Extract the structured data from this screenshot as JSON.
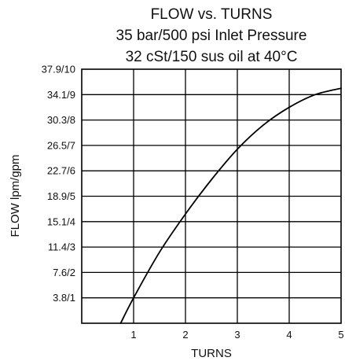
{
  "chart_data": {
    "type": "line",
    "title_lines": [
      "FLOW vs. TURNS",
      "35 bar/500 psi Inlet Pressure",
      "32 cSt/150 sus oil at 40°C"
    ],
    "xlabel": "TURNS",
    "ylabel": "FLOW lpm/gpm",
    "xlim": [
      0,
      5
    ],
    "ylim": [
      0,
      10
    ],
    "x_ticks": [
      {
        "value": 1,
        "label": "1"
      },
      {
        "value": 2,
        "label": "2"
      },
      {
        "value": 3,
        "label": "3"
      },
      {
        "value": 4,
        "label": "4"
      },
      {
        "value": 5,
        "label": "5"
      }
    ],
    "y_ticks": [
      {
        "value": 1,
        "label": "3.8/1"
      },
      {
        "value": 2,
        "label": "7.6/2"
      },
      {
        "value": 3,
        "label": "11.4/3"
      },
      {
        "value": 4,
        "label": "15.1/4"
      },
      {
        "value": 5,
        "label": "18.9/5"
      },
      {
        "value": 6,
        "label": "22.7/6"
      },
      {
        "value": 7,
        "label": "26.5/7"
      },
      {
        "value": 8,
        "label": "30.3/8"
      },
      {
        "value": 9,
        "label": "34.1/9"
      },
      {
        "value": 10,
        "label": "37.9/10"
      }
    ],
    "grid": true,
    "series": [
      {
        "x": [
          0.75,
          1.0,
          1.5,
          2.0,
          2.5,
          3.0,
          3.5,
          4.0,
          4.5,
          5.0
        ],
        "y": [
          0.0,
          1.0,
          2.8,
          4.3,
          5.65,
          6.85,
          7.8,
          8.5,
          9.0,
          9.25
        ]
      }
    ],
    "line_color": "#000000"
  }
}
